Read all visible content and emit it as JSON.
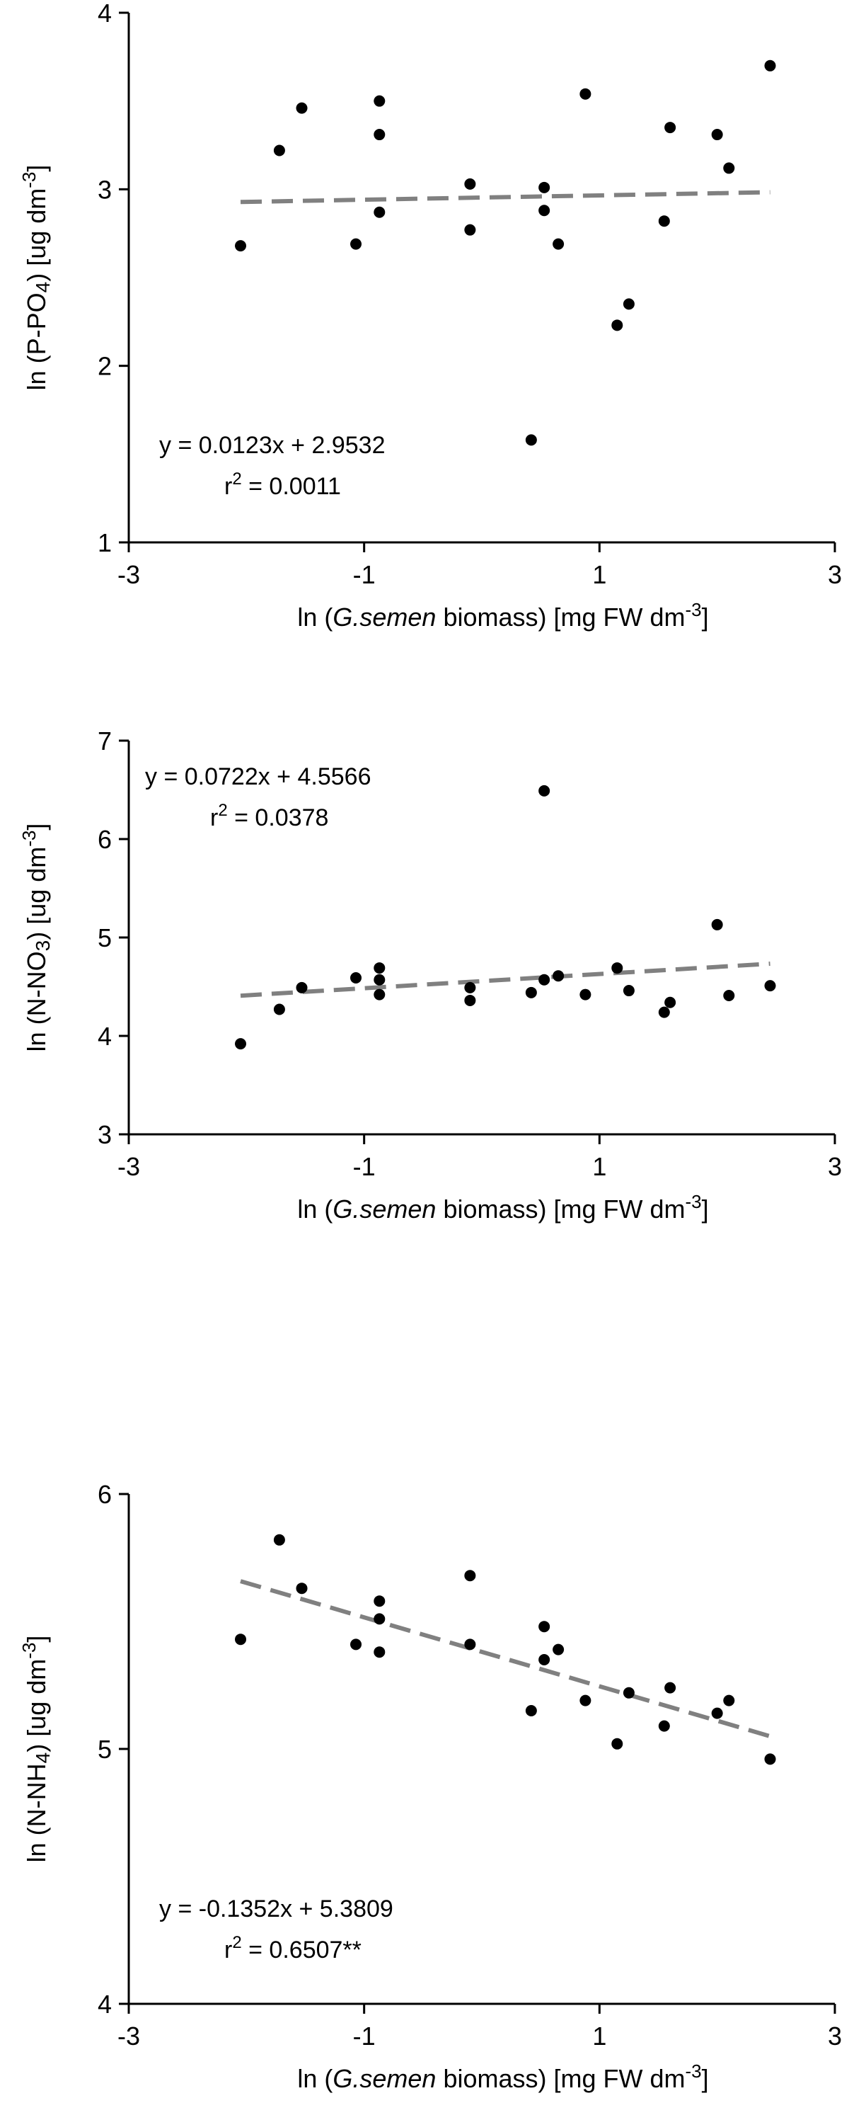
{
  "chart_data": [
    {
      "type": "scatter",
      "xlabel": "ln (G.semen biomass) [mg FW dm-3]",
      "xlabel_parts": {
        "pre": "ln (",
        "italic": "G.semen",
        "post": " biomass) [mg FW dm",
        "sup": "-3",
        "end": "]"
      },
      "ylabel": "ln (P-PO4) [ug dm-3]",
      "ylabel_parts": {
        "pre": "ln (P-PO",
        "sub": "4",
        "mid": ") [ug dm",
        "sup": "-3",
        "end": "]"
      },
      "xlim": [
        -3,
        3
      ],
      "ylim": [
        1,
        4
      ],
      "xticks": [
        "-3",
        "-1",
        "1",
        "3"
      ],
      "yticks": [
        "1",
        "2",
        "3",
        "4"
      ],
      "ytick_values": [
        1,
        2,
        3,
        4
      ],
      "grid": false,
      "points": [
        {
          "x": -2.05,
          "y": 2.68
        },
        {
          "x": -1.72,
          "y": 3.22
        },
        {
          "x": -1.53,
          "y": 3.46
        },
        {
          "x": -1.07,
          "y": 2.69
        },
        {
          "x": -0.87,
          "y": 3.5
        },
        {
          "x": -0.87,
          "y": 3.31
        },
        {
          "x": -0.87,
          "y": 2.87
        },
        {
          "x": -0.1,
          "y": 3.03
        },
        {
          "x": -0.1,
          "y": 2.77
        },
        {
          "x": 0.42,
          "y": 1.58
        },
        {
          "x": 0.53,
          "y": 3.01
        },
        {
          "x": 0.53,
          "y": 2.88
        },
        {
          "x": 0.65,
          "y": 2.69
        },
        {
          "x": 0.88,
          "y": 3.54
        },
        {
          "x": 1.15,
          "y": 2.23
        },
        {
          "x": 1.25,
          "y": 2.35
        },
        {
          "x": 1.55,
          "y": 2.82
        },
        {
          "x": 1.6,
          "y": 3.35
        },
        {
          "x": 2.0,
          "y": 3.31
        },
        {
          "x": 2.1,
          "y": 3.12
        },
        {
          "x": 2.45,
          "y": 3.7
        }
      ],
      "trendline": {
        "slope": 0.0123,
        "intercept": 2.9532,
        "x_range": [
          -2.05,
          2.45
        ]
      },
      "annotations": [
        "y = 0.0123x + 2.9532",
        "r2 = 0.0011"
      ],
      "r2_parts": {
        "pre": "r",
        "sup": "2",
        "post": " = 0.0011"
      },
      "annotation_position": "bottom-left"
    },
    {
      "type": "scatter",
      "xlabel": "ln (G.semen biomass) [mg FW dm-3]",
      "xlabel_parts": {
        "pre": "ln (",
        "italic": "G.semen",
        "post": " biomass) [mg FW dm",
        "sup": "-3",
        "end": "]"
      },
      "ylabel": "ln (N-NO3) [ug dm-3]",
      "ylabel_parts": {
        "pre": "ln (N-NO",
        "sub": "3",
        "mid": ") [ug dm",
        "sup": "-3",
        "end": "]"
      },
      "xlim": [
        -3,
        3
      ],
      "ylim": [
        3,
        7
      ],
      "xticks": [
        "-3",
        "-1",
        "1",
        "3"
      ],
      "yticks": [
        "3",
        "4",
        "5",
        "6",
        "7"
      ],
      "ytick_values": [
        3,
        4,
        5,
        6,
        7
      ],
      "grid": false,
      "points": [
        {
          "x": -2.05,
          "y": 3.92
        },
        {
          "x": -1.72,
          "y": 4.27
        },
        {
          "x": -1.53,
          "y": 4.49
        },
        {
          "x": -1.07,
          "y": 4.59
        },
        {
          "x": -0.87,
          "y": 4.69
        },
        {
          "x": -0.87,
          "y": 4.57
        },
        {
          "x": -0.87,
          "y": 4.42
        },
        {
          "x": -0.1,
          "y": 4.49
        },
        {
          "x": -0.1,
          "y": 4.36
        },
        {
          "x": 0.42,
          "y": 4.44
        },
        {
          "x": 0.53,
          "y": 4.57
        },
        {
          "x": 0.53,
          "y": 6.49
        },
        {
          "x": 0.65,
          "y": 4.61
        },
        {
          "x": 0.88,
          "y": 4.42
        },
        {
          "x": 1.15,
          "y": 4.69
        },
        {
          "x": 1.25,
          "y": 4.46
        },
        {
          "x": 1.55,
          "y": 4.24
        },
        {
          "x": 1.6,
          "y": 4.34
        },
        {
          "x": 2.0,
          "y": 5.13
        },
        {
          "x": 2.1,
          "y": 4.41
        },
        {
          "x": 2.45,
          "y": 4.51
        }
      ],
      "trendline": {
        "slope": 0.0722,
        "intercept": 4.5566,
        "x_range": [
          -2.05,
          2.45
        ]
      },
      "annotations": [
        "y = 0.0722x + 4.5566",
        "r2 = 0.0378"
      ],
      "r2_parts": {
        "pre": "r",
        "sup": "2",
        "post": " = 0.0378"
      },
      "annotation_position": "top-left"
    },
    {
      "type": "scatter",
      "xlabel": "ln (G.semen biomass) [mg FW dm-3]",
      "xlabel_parts": {
        "pre": "ln (",
        "italic": "G.semen",
        "post": " biomass) [mg FW dm",
        "sup": "-3",
        "end": "]"
      },
      "ylabel": "ln (N-NH4) [ug dm-3]",
      "ylabel_parts": {
        "pre": "ln (N-NH",
        "sub": "4",
        "mid": ") [ug dm",
        "sup": "-3",
        "end": "]"
      },
      "xlim": [
        -3,
        3
      ],
      "ylim": [
        4,
        6
      ],
      "xticks": [
        "-3",
        "-1",
        "1",
        "3"
      ],
      "yticks": [
        "4",
        "5",
        "6"
      ],
      "ytick_values": [
        4,
        5,
        6
      ],
      "grid": false,
      "points": [
        {
          "x": -2.05,
          "y": 5.43
        },
        {
          "x": -1.72,
          "y": 5.82
        },
        {
          "x": -1.53,
          "y": 5.63
        },
        {
          "x": -1.07,
          "y": 5.41
        },
        {
          "x": -0.87,
          "y": 5.58
        },
        {
          "x": -0.87,
          "y": 5.51
        },
        {
          "x": -0.87,
          "y": 5.38
        },
        {
          "x": -0.1,
          "y": 5.68
        },
        {
          "x": -0.1,
          "y": 5.41
        },
        {
          "x": 0.42,
          "y": 5.15
        },
        {
          "x": 0.53,
          "y": 5.48
        },
        {
          "x": 0.53,
          "y": 5.35
        },
        {
          "x": 0.65,
          "y": 5.39
        },
        {
          "x": 0.88,
          "y": 5.19
        },
        {
          "x": 1.15,
          "y": 5.02
        },
        {
          "x": 1.25,
          "y": 5.22
        },
        {
          "x": 1.55,
          "y": 5.09
        },
        {
          "x": 1.6,
          "y": 5.24
        },
        {
          "x": 2.0,
          "y": 5.14
        },
        {
          "x": 2.1,
          "y": 5.19
        },
        {
          "x": 2.45,
          "y": 4.96
        }
      ],
      "trendline": {
        "slope": -0.1352,
        "intercept": 5.3809,
        "x_range": [
          -2.05,
          2.45
        ]
      },
      "annotations": [
        "y = -0.1352x + 5.3809",
        "r2 = 0.6507**"
      ],
      "r2_parts": {
        "pre": "r",
        "sup": "2",
        "post": " = 0.6507**"
      },
      "annotation_position": "bottom-left"
    }
  ],
  "colors": {
    "points": "#000000",
    "trendline": "#808080",
    "axes": "#000000",
    "text": "#000000"
  }
}
